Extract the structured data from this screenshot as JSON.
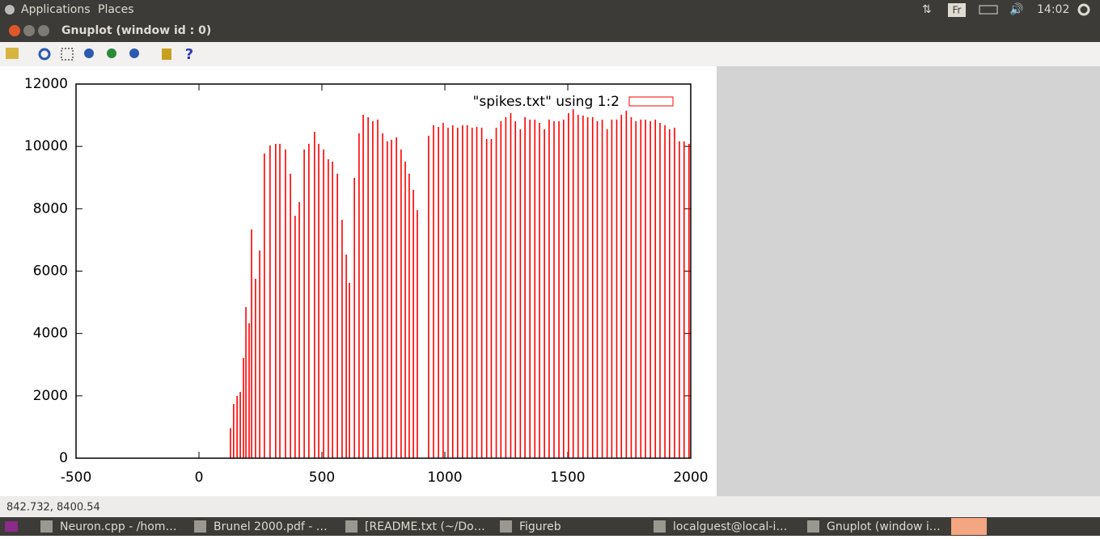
{
  "top_panel": {
    "menus": [
      "Applications",
      "Places"
    ],
    "keyboard": "Fr",
    "clock": "14:02"
  },
  "window": {
    "title": "Gnuplot (window id : 0)"
  },
  "status": "842.732,  8400.54",
  "taskbar": [
    "Neuron.cpp - /hom…",
    "Brunel  2000.pdf - …",
    "[README.txt (~/Do…",
    "Figureb",
    "localguest@local-i…",
    "Gnuplot (window i…"
  ],
  "chart_data": {
    "type": "impulses",
    "x": [
      128,
      141,
      155,
      168,
      181,
      191,
      204,
      214,
      230,
      247,
      266,
      289,
      312,
      329,
      352,
      372,
      391,
      408,
      428,
      447,
      470,
      487,
      507,
      526,
      543,
      563,
      582,
      599,
      612,
      632,
      651,
      668,
      688,
      707,
      727,
      747,
      766,
      783,
      803,
      822,
      839,
      855,
      872,
      888,
      934,
      954,
      974,
      993,
      1013,
      1032,
      1052,
      1072,
      1091,
      1111,
      1130,
      1150,
      1170,
      1189,
      1209,
      1228,
      1248,
      1268,
      1287,
      1307,
      1326,
      1346,
      1366,
      1385,
      1405,
      1424,
      1444,
      1464,
      1483,
      1503,
      1522,
      1542,
      1562,
      1581,
      1601,
      1620,
      1640,
      1660,
      1679,
      1699,
      1718,
      1738,
      1758,
      1777,
      1797,
      1816,
      1836,
      1856,
      1875,
      1895,
      1914,
      1934,
      1954,
      1973,
      1993
    ],
    "series": [
      {
        "name": "\"spikes.txt\" using 1:2",
        "color": "#ff0000",
        "values": [
          959,
          1737,
          1996,
          2125,
          3214,
          4847,
          4329,
          7335,
          5754,
          6661,
          9772,
          10031,
          10083,
          10083,
          9901,
          9124,
          7776,
          8217,
          9901,
          10083,
          10472,
          10083,
          9901,
          9590,
          9513,
          9124,
          7646,
          6532,
          5625,
          8994,
          10420,
          11016,
          10938,
          10809,
          10860,
          10420,
          10161,
          10212,
          10290,
          9901,
          9513,
          9124,
          8605,
          7957,
          10342,
          10679,
          10627,
          10757,
          10601,
          10679,
          10601,
          10679,
          10679,
          10601,
          10627,
          10601,
          10238,
          10238,
          10601,
          10809,
          10938,
          11068,
          10809,
          10549,
          10938,
          10860,
          10860,
          10757,
          10549,
          10860,
          10809,
          10809,
          10860,
          11068,
          11197,
          11016,
          10990,
          10938,
          10938,
          10809,
          10860,
          10549,
          10860,
          10860,
          11016,
          11146,
          10938,
          10809,
          10860,
          10860,
          10809,
          10860,
          10757,
          10679,
          10549,
          10601,
          10161,
          10161,
          10083
        ]
      }
    ],
    "xlim": [
      -500,
      2000
    ],
    "ylim": [
      0,
      12000
    ],
    "xticks": [
      -500,
      0,
      500,
      1000,
      1500,
      2000
    ],
    "yticks": [
      0,
      2000,
      4000,
      6000,
      8000,
      10000,
      12000
    ],
    "legend": "top right"
  }
}
